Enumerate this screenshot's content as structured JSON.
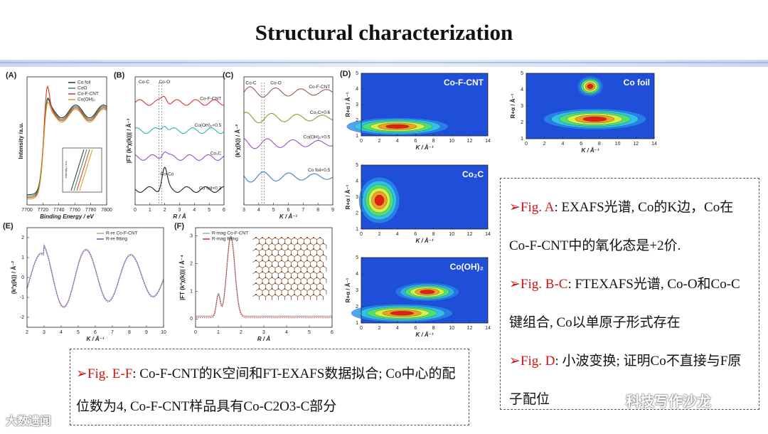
{
  "title": "Structural characterization",
  "panels": [
    {
      "label": "(A)",
      "xlabel": "Binding Energy / eV",
      "ylabel": "Intensity /a.u.",
      "xlim": [
        7700,
        7800
      ],
      "xticks": [
        7700,
        7720,
        7740,
        7760,
        7780,
        7800
      ],
      "legend": [
        {
          "name": "Co foil",
          "color": "#333333"
        },
        {
          "name": "CoO",
          "color": "#2e8b57"
        },
        {
          "name": "Co-F-CNT",
          "color": "#e03030"
        },
        {
          "name": "Co(OH)₂",
          "color": "#d2a020"
        }
      ],
      "annotations": [
        "Intensity / a.u."
      ]
    },
    {
      "label": "(B)",
      "xlabel": "R / Å",
      "ylabel": "|FT (k²χ(k))| / Å⁻³",
      "xlim": [
        0,
        6
      ],
      "xticks": [
        0,
        1,
        2,
        3,
        4,
        5,
        6
      ],
      "annotations": [
        "Co-C",
        "Co-O",
        "Co-F-CNT",
        "Co(OH)₂×0.5",
        "Co₂C",
        "Co-Co",
        "Co foil×0.3"
      ]
    },
    {
      "label": "(C)",
      "xlabel": "K / Å⁻¹",
      "ylabel": "(k²χ(k)) / Å⁻²",
      "xlim": [
        3,
        9
      ],
      "xticks": [
        3,
        4,
        5,
        6,
        7,
        8,
        9
      ],
      "annotations": [
        "Co-C",
        "Co-O",
        "Co-F-CNT",
        "Co₂C×0.6",
        "Co(OH)₂×0.5",
        "Co foil×0.5"
      ]
    },
    {
      "label": "(D)",
      "name": "Co-F-CNT",
      "xlabel": "K / Å⁻¹",
      "ylabel": "R+α / Å⁻¹",
      "xlim": [
        0,
        14
      ],
      "xticks": [
        0,
        2,
        4,
        6,
        8,
        10,
        12,
        14
      ],
      "ylim": [
        1,
        5
      ],
      "yticks": [
        1,
        2,
        3,
        4,
        5
      ]
    },
    {
      "name": "Co₂C",
      "xlabel": "K / Å⁻¹",
      "ylabel": "R+α / Å⁻¹",
      "xlim": [
        0,
        14
      ],
      "xticks": [
        0,
        2,
        4,
        6,
        8,
        10,
        12,
        14
      ],
      "ylim": [
        1,
        5
      ],
      "yticks": [
        1,
        2,
        3,
        4,
        5
      ]
    },
    {
      "name": "Co(OH)₂",
      "xlabel": "K / Å⁻¹",
      "ylabel": "R+α / Å⁻¹",
      "xlim": [
        0,
        14
      ],
      "xticks": [
        0,
        2,
        4,
        6,
        8,
        10,
        12,
        14
      ],
      "ylim": [
        1,
        5
      ],
      "yticks": [
        1,
        2,
        3,
        4,
        5
      ]
    },
    {
      "name": "Co foil",
      "xlabel": "K / Å⁻¹",
      "ylabel": "R+α / Å⁻¹",
      "xlim": [
        0,
        14
      ],
      "xticks": [
        0,
        2,
        4,
        6,
        8,
        10,
        12,
        14
      ],
      "ylim": [
        1,
        5
      ],
      "yticks": [
        1,
        2,
        3,
        4,
        5
      ]
    },
    {
      "label": "(E)",
      "xlabel": "K / Å⁻¹",
      "ylabel": "(k²χ(k)) / Å⁻²",
      "xlim": [
        2,
        10
      ],
      "xticks": [
        2,
        3,
        4,
        5,
        6,
        7,
        8,
        9,
        10
      ],
      "ylim": [
        -2.5,
        2.5
      ],
      "yticks": [
        -2,
        -1,
        0,
        1,
        2
      ],
      "legend": [
        {
          "name": "R-re Co-F-CNT",
          "color": "#aaaaaa"
        },
        {
          "name": "R-re fitting",
          "color": "#8a3fd0"
        }
      ]
    },
    {
      "label": "(F)",
      "xlabel": "R / Å",
      "ylabel": "|FT (k²χ(k))| / Å⁻⁴",
      "xlim": [
        0,
        6
      ],
      "xticks": [
        0,
        1,
        2,
        3,
        4,
        5,
        6
      ],
      "ylim": [
        -0.3,
        3.3
      ],
      "yticks": [
        0,
        1,
        2,
        3
      ],
      "legend": [
        {
          "name": "R-mag Co-F-CNT",
          "color": "#aaaaaa"
        },
        {
          "name": "R-mag fitting",
          "color": "#e02020"
        }
      ]
    }
  ],
  "notes": [
    {
      "label": "➢Fig. A",
      "text": ": EXAFS光谱, Co的K边，Co在Co-F-CNT中的氧化态是+2价."
    },
    {
      "label": "➢Fig.  B-C",
      "text": ":  FTEXAFS光谱,  Co-O和Co-C键组合, Co以单原子形式存在"
    },
    {
      "label": "➢Fig. D",
      "text": ": 小波变换; 证明Co不直接与F原子配位"
    }
  ],
  "bottom_note": {
    "label": "➢Fig. E-F",
    "text": ": Co-F-CNT的K空间和FT-EXAFS数据拟合; Co中心的配位数为4, Co-F-CNT样品具有Co-C2O3-C部分"
  },
  "watermarks": [
    "大数遗闻",
    "科技写作沙龙"
  ]
}
